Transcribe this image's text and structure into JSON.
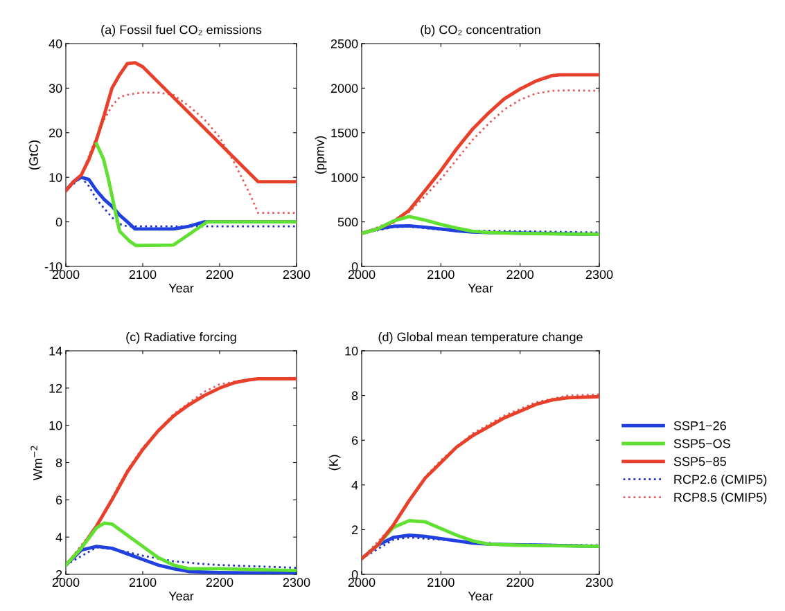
{
  "chart_data": [
    {
      "type": "line",
      "title": "(a) Fossil fuel CO₂ emissions",
      "xlabel": "Year",
      "ylabel": "(GtC)",
      "xlim": [
        2000,
        2300
      ],
      "xticks": [
        2000,
        2100,
        2200,
        2300
      ],
      "ylim": [
        -10,
        40
      ],
      "yticks": [
        -10,
        0,
        10,
        20,
        30,
        40
      ],
      "series": [
        {
          "color": "#2030c0",
          "line_style": "dotted",
          "x": [
            2000,
            2020,
            2030,
            2040,
            2050,
            2060,
            2070,
            2080,
            2100,
            2300
          ],
          "values": [
            7,
            10,
            8,
            5,
            3,
            1,
            -0.5,
            -1,
            -1,
            -1
          ]
        },
        {
          "color": "#e06060",
          "line_style": "dotted",
          "x": [
            2000,
            2020,
            2040,
            2050,
            2060,
            2070,
            2080,
            2090,
            2100,
            2120,
            2140,
            2160,
            2180,
            2200,
            2220,
            2240,
            2250,
            2300
          ],
          "values": [
            7,
            10.5,
            19,
            23,
            26,
            28,
            28.5,
            28.8,
            29,
            29,
            28.5,
            26,
            23,
            19,
            13,
            6,
            2,
            2
          ]
        },
        {
          "color": "#2040e0",
          "x": [
            2000,
            2010,
            2020,
            2030,
            2040,
            2050,
            2060,
            2070,
            2080,
            2090,
            2100,
            2140,
            2160,
            2180,
            2300
          ],
          "values": [
            7,
            9,
            10,
            9.5,
            7,
            5,
            3.5,
            1.5,
            0,
            -1.6,
            -1.6,
            -1.6,
            -1,
            0,
            0
          ]
        },
        {
          "color": "#e8402a",
          "x": [
            2000,
            2010,
            2020,
            2030,
            2040,
            2050,
            2060,
            2070,
            2080,
            2090,
            2100,
            2250,
            2300
          ],
          "values": [
            7,
            9,
            10.5,
            14,
            18.5,
            24,
            30,
            33,
            35.5,
            35.7,
            34.8,
            9,
            9
          ]
        },
        {
          "color": "#60e030",
          "x": [
            2040,
            2049,
            2055,
            2064,
            2070,
            2082,
            2091,
            2140,
            2184,
            2300
          ],
          "values": [
            17.5,
            14.1,
            9.9,
            2.6,
            -2.1,
            -4.2,
            -5.3,
            -5.2,
            0,
            0
          ]
        }
      ]
    },
    {
      "type": "line",
      "title": "(b) CO₂ concentration",
      "xlabel": "Year",
      "ylabel": "(ppmv)",
      "xlim": [
        2000,
        2300
      ],
      "xticks": [
        2000,
        2100,
        2200,
        2300
      ],
      "ylim": [
        0,
        2500
      ],
      "yticks": [
        0,
        500,
        1000,
        1500,
        2000,
        2500
      ],
      "series": [
        {
          "color": "#2030c0",
          "line_style": "dotted",
          "x": [
            2000,
            2040,
            2060,
            2080,
            2100,
            2140,
            2200,
            2300
          ],
          "values": [
            370,
            440,
            445,
            430,
            410,
            400,
            395,
            380
          ]
        },
        {
          "color": "#e06060",
          "line_style": "dotted",
          "x": [
            2000,
            2040,
            2060,
            2080,
            2100,
            2120,
            2140,
            2160,
            2180,
            2200,
            2220,
            2240,
            2260,
            2300
          ],
          "values": [
            370,
            510,
            610,
            790,
            980,
            1200,
            1420,
            1600,
            1760,
            1870,
            1940,
            1970,
            1975,
            1970
          ]
        },
        {
          "color": "#2040e0",
          "x": [
            2000,
            2020,
            2040,
            2060,
            2080,
            2100,
            2120,
            2140,
            2160,
            2300
          ],
          "values": [
            370,
            420,
            450,
            455,
            440,
            420,
            400,
            385,
            380,
            360
          ]
        },
        {
          "color": "#e8402a",
          "x": [
            2000,
            2020,
            2040,
            2060,
            2080,
            2100,
            2120,
            2140,
            2160,
            2180,
            2200,
            2220,
            2240,
            2250,
            2300
          ],
          "values": [
            370,
            420,
            500,
            630,
            850,
            1075,
            1320,
            1540,
            1720,
            1880,
            1990,
            2080,
            2140,
            2150,
            2150
          ]
        },
        {
          "color": "#60e030",
          "x": [
            2000,
            2020,
            2040,
            2060,
            2080,
            2100,
            2120,
            2140,
            2160,
            2200,
            2300
          ],
          "values": [
            370,
            420,
            510,
            560,
            520,
            470,
            430,
            395,
            380,
            370,
            360
          ]
        }
      ]
    },
    {
      "type": "line",
      "title": "(c) Radiative forcing",
      "xlabel": "Year",
      "ylabel": "Wm$^{−2}$",
      "xlim": [
        2000,
        2300
      ],
      "xticks": [
        2000,
        2100,
        2200,
        2300
      ],
      "ylim": [
        2,
        14
      ],
      "yticks": [
        2,
        4,
        6,
        8,
        10,
        12,
        14
      ],
      "series": [
        {
          "color": "#2030c0",
          "line_style": "dotted",
          "x": [
            2000,
            2040,
            2060,
            2080,
            2100,
            2140,
            2180,
            2200,
            2300
          ],
          "values": [
            2.5,
            3.45,
            3.35,
            3.2,
            3.0,
            2.7,
            2.55,
            2.5,
            2.35
          ]
        },
        {
          "color": "#e06060",
          "line_style": "dotted",
          "x": [
            2000,
            2040,
            2060,
            2080,
            2100,
            2140,
            2180,
            2200,
            2240,
            2300
          ],
          "values": [
            2.5,
            4.6,
            6.1,
            7.6,
            8.8,
            10.6,
            11.8,
            12.2,
            12.5,
            12.55
          ]
        },
        {
          "color": "#2040e0",
          "x": [
            2000,
            2020,
            2040,
            2060,
            2080,
            2100,
            2120,
            2140,
            2160,
            2200,
            2300
          ],
          "values": [
            2.5,
            3.3,
            3.5,
            3.4,
            3.1,
            2.8,
            2.5,
            2.3,
            2.15,
            2.1,
            2.05
          ]
        },
        {
          "color": "#e8402a",
          "x": [
            2000,
            2020,
            2040,
            2060,
            2080,
            2100,
            2120,
            2140,
            2160,
            2180,
            2200,
            2220,
            2240,
            2250,
            2300
          ],
          "values": [
            2.5,
            3.4,
            4.6,
            6.0,
            7.5,
            8.7,
            9.7,
            10.5,
            11.1,
            11.6,
            12.0,
            12.3,
            12.45,
            12.5,
            12.5
          ]
        },
        {
          "color": "#60e030",
          "x": [
            2000,
            2020,
            2040,
            2050,
            2060,
            2080,
            2100,
            2120,
            2140,
            2160,
            2200,
            2300
          ],
          "values": [
            2.5,
            3.4,
            4.5,
            4.75,
            4.7,
            4.1,
            3.5,
            2.9,
            2.5,
            2.3,
            2.3,
            2.2
          ]
        }
      ]
    },
    {
      "type": "line",
      "title": "(d) Global mean temperature change",
      "xlabel": "Year",
      "ylabel": "(K)",
      "xlim": [
        2000,
        2300
      ],
      "xticks": [
        2000,
        2100,
        2200,
        2300
      ],
      "ylim": [
        0,
        10
      ],
      "yticks": [
        0,
        2,
        4,
        6,
        8,
        10
      ],
      "legend": "right",
      "series": [
        {
          "name": "RCP2.6 (CMIP5)",
          "color": "#2030c0",
          "line_style": "dotted",
          "x": [
            2000,
            2040,
            2060,
            2080,
            2100,
            2140,
            2180,
            2300
          ],
          "values": [
            0.7,
            1.55,
            1.65,
            1.6,
            1.55,
            1.45,
            1.35,
            1.3
          ]
        },
        {
          "name": "RCP8.5 (CMIP5)",
          "color": "#e06060",
          "line_style": "dotted",
          "x": [
            2000,
            2040,
            2080,
            2100,
            2140,
            2180,
            2220,
            2260,
            2300
          ],
          "values": [
            0.7,
            2.2,
            4.35,
            5.1,
            6.3,
            7.1,
            7.7,
            8.0,
            8.05
          ]
        },
        {
          "name": "SSP1−26",
          "color": "#2040e0",
          "x": [
            2000,
            2020,
            2040,
            2060,
            2080,
            2100,
            2120,
            2140,
            2160,
            2300
          ],
          "values": [
            0.7,
            1.3,
            1.65,
            1.75,
            1.7,
            1.6,
            1.5,
            1.4,
            1.35,
            1.25
          ]
        },
        {
          "name": "SSP5−OS",
          "color": "#60e030",
          "x": [
            2000,
            2020,
            2040,
            2060,
            2080,
            2100,
            2120,
            2140,
            2160,
            2200,
            2300
          ],
          "values": [
            0.7,
            1.3,
            2.1,
            2.4,
            2.35,
            2.05,
            1.75,
            1.5,
            1.35,
            1.3,
            1.25
          ]
        },
        {
          "name": "SSP5−85",
          "color": "#e8402a",
          "x": [
            2000,
            2020,
            2040,
            2060,
            2080,
            2100,
            2120,
            2140,
            2160,
            2180,
            2200,
            2220,
            2240,
            2260,
            2300
          ],
          "values": [
            0.7,
            1.3,
            2.2,
            3.3,
            4.3,
            5.0,
            5.7,
            6.2,
            6.6,
            7.0,
            7.3,
            7.6,
            7.8,
            7.9,
            7.95
          ]
        }
      ]
    }
  ]
}
